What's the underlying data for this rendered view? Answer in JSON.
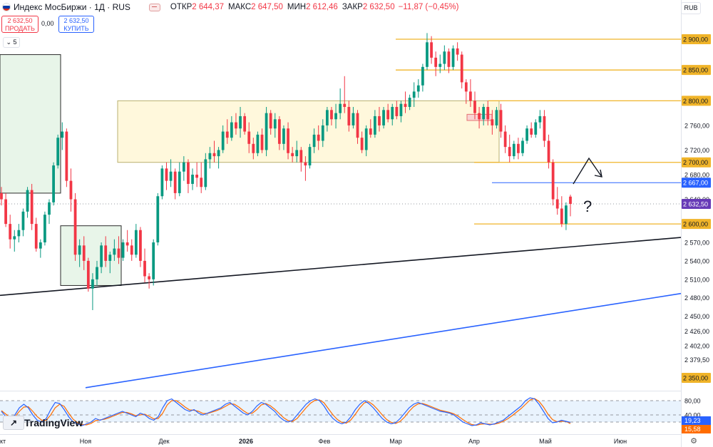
{
  "header": {
    "flag_colors": [
      "#ffffff",
      "#0039a6",
      "#d52b1e"
    ],
    "title": "Индекс МосБиржи · 1Д · RUS",
    "open_label": "ОТКР",
    "open_value": "2 644,37",
    "high_label": "МАКС",
    "high_value": "2 647,50",
    "low_label": "МИН",
    "low_value": "2 612,46",
    "close_label": "ЗАКР",
    "close_value": "2 632,50",
    "change_value": "−11,87 (−0,45%)",
    "currency": "RUB"
  },
  "trade": {
    "sell_price": "2 632,50",
    "sell_label": "ПРОДАТЬ",
    "spread": "0,00",
    "buy_price": "2 632,50",
    "buy_label": "КУПИТЬ",
    "indicators_count": "5"
  },
  "logo_text": "TradingView",
  "chart_data": {
    "type": "candlestick",
    "title": "Индекс МосБиржи · 1Д · RUS",
    "ylim": [
      2330,
      2920
    ],
    "y_ticks": [
      "2 900,00",
      "2 850,00",
      "2 800,00",
      "2 760,00",
      "2 720,00",
      "2 700,00",
      "2 680,00",
      "2 640,00",
      "2 600,00",
      "2 570,00",
      "2 540,00",
      "2 510,00",
      "2 480,00",
      "2 450,00",
      "2 426,00",
      "2 402,00",
      "2 379,50",
      "2 350,00"
    ],
    "y_tick_values": [
      2900,
      2850,
      2800,
      2760,
      2720,
      2700,
      2680,
      2640,
      2600,
      2570,
      2540,
      2510,
      2480,
      2450,
      2426,
      2402,
      2379.5,
      2350
    ],
    "x_labels": [
      {
        "label": "кт",
        "day": 0
      },
      {
        "label": "Ноя",
        "day": 24
      },
      {
        "label": "Дек",
        "day": 46
      },
      {
        "label": "2026",
        "day": 69
      },
      {
        "label": "Фев",
        "day": 91
      },
      {
        "label": "Мар",
        "day": 111
      },
      {
        "label": "Апр",
        "day": 133
      },
      {
        "label": "Май",
        "day": 153
      },
      {
        "label": "Июн",
        "day": 174
      }
    ],
    "days_total": 191,
    "highlighted_levels": [
      {
        "value": 2900,
        "label": "2 900,00",
        "color": "#f0b429"
      },
      {
        "value": 2850,
        "label": "2 850,00",
        "color": "#f0b429"
      },
      {
        "value": 2800,
        "label": "2 800,00",
        "color": "#f0b429"
      },
      {
        "value": 2700,
        "label": "2 700,00",
        "color": "#f0b429"
      },
      {
        "value": 2600,
        "label": "2 600,00",
        "color": "#f0b429"
      },
      {
        "value": 2350,
        "label": "2 350,00",
        "color": "#f0b429"
      },
      {
        "value": 2667,
        "label": "2 667,00",
        "color": "#2962ff"
      }
    ],
    "last_price": {
      "value": 2632.5,
      "label": "2 632,50",
      "color": "#673ab7"
    },
    "candles": [
      [
        2650,
        2660,
        2630,
        2640
      ],
      [
        2640,
        2650,
        2595,
        2600
      ],
      [
        2600,
        2615,
        2560,
        2575
      ],
      [
        2575,
        2590,
        2555,
        2580
      ],
      [
        2580,
        2600,
        2570,
        2590
      ],
      [
        2590,
        2625,
        2580,
        2620
      ],
      [
        2620,
        2660,
        2610,
        2655
      ],
      [
        2655,
        2665,
        2590,
        2600
      ],
      [
        2600,
        2610,
        2555,
        2560
      ],
      [
        2560,
        2575,
        2545,
        2570
      ],
      [
        2570,
        2620,
        2565,
        2615
      ],
      [
        2615,
        2640,
        2600,
        2635
      ],
      [
        2635,
        2700,
        2630,
        2695
      ],
      [
        2695,
        2745,
        2690,
        2740
      ],
      [
        2740,
        2765,
        2720,
        2750
      ],
      [
        2750,
        2755,
        2660,
        2670
      ],
      [
        2670,
        2690,
        2620,
        2640
      ],
      [
        2640,
        2650,
        2540,
        2550
      ],
      [
        2550,
        2575,
        2530,
        2565
      ],
      [
        2565,
        2580,
        2525,
        2540
      ],
      [
        2540,
        2545,
        2490,
        2495
      ],
      [
        2495,
        2520,
        2460,
        2510
      ],
      [
        2510,
        2540,
        2500,
        2530
      ],
      [
        2530,
        2570,
        2520,
        2565
      ],
      [
        2565,
        2580,
        2530,
        2540
      ],
      [
        2540,
        2555,
        2520,
        2550
      ],
      [
        2550,
        2575,
        2540,
        2560
      ],
      [
        2560,
        2580,
        2535,
        2545
      ],
      [
        2545,
        2575,
        2540,
        2570
      ],
      [
        2570,
        2590,
        2555,
        2565
      ],
      [
        2565,
        2575,
        2540,
        2550
      ],
      [
        2550,
        2600,
        2545,
        2590
      ],
      [
        2590,
        2595,
        2530,
        2540
      ],
      [
        2540,
        2560,
        2505,
        2515
      ],
      [
        2515,
        2520,
        2495,
        2510
      ],
      [
        2510,
        2575,
        2500,
        2570
      ],
      [
        2570,
        2650,
        2565,
        2645
      ],
      [
        2645,
        2695,
        2640,
        2690
      ],
      [
        2690,
        2700,
        2655,
        2670
      ],
      [
        2670,
        2705,
        2660,
        2685
      ],
      [
        2685,
        2690,
        2640,
        2650
      ],
      [
        2650,
        2700,
        2645,
        2685
      ],
      [
        2685,
        2710,
        2670,
        2700
      ],
      [
        2700,
        2705,
        2650,
        2665
      ],
      [
        2665,
        2690,
        2655,
        2680
      ],
      [
        2680,
        2700,
        2660,
        2675
      ],
      [
        2675,
        2700,
        2650,
        2660
      ],
      [
        2660,
        2715,
        2655,
        2705
      ],
      [
        2705,
        2725,
        2690,
        2715
      ],
      [
        2715,
        2735,
        2700,
        2710
      ],
      [
        2710,
        2725,
        2690,
        2720
      ],
      [
        2720,
        2760,
        2715,
        2750
      ],
      [
        2750,
        2770,
        2730,
        2740
      ],
      [
        2740,
        2775,
        2735,
        2765
      ],
      [
        2765,
        2780,
        2745,
        2755
      ],
      [
        2755,
        2790,
        2740,
        2775
      ],
      [
        2775,
        2780,
        2745,
        2750
      ],
      [
        2750,
        2765,
        2715,
        2730
      ],
      [
        2730,
        2740,
        2705,
        2715
      ],
      [
        2715,
        2750,
        2710,
        2745
      ],
      [
        2745,
        2755,
        2715,
        2720
      ],
      [
        2720,
        2790,
        2710,
        2780
      ],
      [
        2780,
        2785,
        2745,
        2755
      ],
      [
        2755,
        2780,
        2740,
        2770
      ],
      [
        2770,
        2775,
        2720,
        2730
      ],
      [
        2730,
        2760,
        2720,
        2755
      ],
      [
        2755,
        2765,
        2705,
        2715
      ],
      [
        2715,
        2725,
        2700,
        2710
      ],
      [
        2710,
        2735,
        2700,
        2720
      ],
      [
        2720,
        2725,
        2685,
        2700
      ],
      [
        2700,
        2710,
        2670,
        2695
      ],
      [
        2695,
        2730,
        2690,
        2725
      ],
      [
        2725,
        2755,
        2715,
        2745
      ],
      [
        2745,
        2760,
        2720,
        2735
      ],
      [
        2735,
        2770,
        2725,
        2760
      ],
      [
        2760,
        2790,
        2750,
        2785
      ],
      [
        2785,
        2790,
        2760,
        2770
      ],
      [
        2770,
        2795,
        2755,
        2780
      ],
      [
        2780,
        2820,
        2770,
        2795
      ],
      [
        2795,
        2840,
        2780,
        2790
      ],
      [
        2790,
        2800,
        2750,
        2760
      ],
      [
        2760,
        2790,
        2755,
        2780
      ],
      [
        2780,
        2785,
        2730,
        2740
      ],
      [
        2740,
        2750,
        2715,
        2720
      ],
      [
        2720,
        2760,
        2710,
        2755
      ],
      [
        2755,
        2770,
        2740,
        2745
      ],
      [
        2745,
        2785,
        2740,
        2775
      ],
      [
        2775,
        2790,
        2750,
        2760
      ],
      [
        2760,
        2790,
        2755,
        2785
      ],
      [
        2785,
        2795,
        2765,
        2770
      ],
      [
        2770,
        2795,
        2760,
        2790
      ],
      [
        2790,
        2800,
        2770,
        2775
      ],
      [
        2775,
        2800,
        2765,
        2795
      ],
      [
        2795,
        2815,
        2780,
        2790
      ],
      [
        2790,
        2810,
        2785,
        2805
      ],
      [
        2805,
        2830,
        2790,
        2815
      ],
      [
        2815,
        2835,
        2805,
        2825
      ],
      [
        2825,
        2860,
        2815,
        2855
      ],
      [
        2855,
        2910,
        2850,
        2895
      ],
      [
        2895,
        2905,
        2860,
        2870
      ],
      [
        2870,
        2880,
        2840,
        2855
      ],
      [
        2855,
        2875,
        2845,
        2860
      ],
      [
        2860,
        2890,
        2850,
        2880
      ],
      [
        2880,
        2885,
        2845,
        2855
      ],
      [
        2855,
        2890,
        2850,
        2885
      ],
      [
        2885,
        2895,
        2865,
        2875
      ],
      [
        2875,
        2880,
        2820,
        2830
      ],
      [
        2830,
        2835,
        2795,
        2815
      ],
      [
        2815,
        2835,
        2790,
        2800
      ],
      [
        2800,
        2815,
        2770,
        2780
      ],
      [
        2780,
        2790,
        2755,
        2770
      ],
      [
        2770,
        2795,
        2760,
        2790
      ],
      [
        2790,
        2800,
        2760,
        2770
      ],
      [
        2770,
        2785,
        2745,
        2760
      ],
      [
        2760,
        2790,
        2755,
        2785
      ],
      [
        2785,
        2795,
        2740,
        2750
      ],
      [
        2750,
        2760,
        2715,
        2725
      ],
      [
        2725,
        2745,
        2700,
        2710
      ],
      [
        2710,
        2735,
        2705,
        2730
      ],
      [
        2730,
        2740,
        2705,
        2715
      ],
      [
        2715,
        2740,
        2710,
        2735
      ],
      [
        2735,
        2760,
        2730,
        2755
      ],
      [
        2755,
        2765,
        2740,
        2745
      ],
      [
        2745,
        2770,
        2740,
        2765
      ],
      [
        2765,
        2785,
        2755,
        2775
      ],
      [
        2775,
        2785,
        2725,
        2735
      ],
      [
        2735,
        2745,
        2690,
        2700
      ],
      [
        2700,
        2705,
        2630,
        2640
      ],
      [
        2640,
        2660,
        2615,
        2625
      ],
      [
        2625,
        2645,
        2595,
        2600
      ],
      [
        2600,
        2635,
        2590,
        2630
      ],
      [
        2644.37,
        2647.5,
        2612.46,
        2632.5
      ]
    ],
    "overlay_boxes": [
      {
        "name": "green-zone-top",
        "day_start": 0,
        "day_end": 17,
        "y_top": 2875,
        "y_bottom": 2650,
        "color": "#e8f5e9",
        "border": "#2b2b2b"
      },
      {
        "name": "green-zone-bottom",
        "day_start": 17,
        "day_end": 34,
        "y_top": 2597,
        "y_bottom": 2500,
        "color": "#e8f5e9",
        "border": "#2b2b2b"
      },
      {
        "name": "yellow-range",
        "day_start": 33,
        "day_end": 140,
        "y_top": 2800,
        "y_bottom": 2700,
        "color": "#fff8dc",
        "border": "#b8b070"
      },
      {
        "name": "red-zone",
        "day_start": 131,
        "day_end": 138,
        "y_top": 2778,
        "y_bottom": 2768,
        "color": "#f9d3d3",
        "border": "#e57373"
      }
    ],
    "trendlines": [
      {
        "name": "black-support",
        "from": [
          0,
          2484
        ],
        "to": [
          191,
          2578
        ],
        "color": "#131722"
      },
      {
        "name": "blue-support",
        "from": [
          24,
          2334
        ],
        "to": [
          191,
          2487
        ],
        "color": "#2962ff"
      }
    ],
    "annotation": "?",
    "oscillator": {
      "type": "stochastic",
      "levels": [
        80,
        40
      ],
      "level_labels": [
        "80,00",
        "40,00"
      ],
      "k_label": "19,23",
      "d_label": "15,58",
      "k_color": "#2962ff",
      "d_color": "#ff6d00",
      "k": [
        50,
        35,
        25,
        40,
        60,
        70,
        60,
        40,
        25,
        20,
        30,
        55,
        75,
        72,
        55,
        35,
        20,
        15,
        10,
        15,
        20,
        30,
        25,
        30,
        35,
        40,
        45,
        50,
        45,
        40,
        35,
        45,
        40,
        30,
        25,
        35,
        60,
        80,
        85,
        75,
        65,
        55,
        50,
        55,
        45,
        40,
        45,
        50,
        55,
        60,
        70,
        75,
        65,
        55,
        45,
        40,
        50,
        65,
        75,
        70,
        60,
        50,
        35,
        25,
        20,
        25,
        40,
        55,
        70,
        80,
        85,
        80,
        65,
        45,
        30,
        20,
        15,
        20,
        35,
        55,
        70,
        80,
        72,
        60,
        45,
        30,
        20,
        15,
        18,
        30,
        45,
        60,
        70,
        75,
        70,
        65,
        60,
        55,
        50,
        48,
        45,
        40,
        30,
        20,
        15,
        10,
        12,
        18,
        15,
        12,
        15,
        20,
        25,
        35,
        45,
        55,
        65,
        80,
        88,
        85,
        70,
        50,
        30,
        18,
        20,
        25,
        22,
        19.23
      ],
      "d": [
        52,
        42,
        32,
        35,
        50,
        62,
        63,
        50,
        35,
        25,
        25,
        40,
        60,
        70,
        64,
        45,
        28,
        18,
        13,
        12,
        16,
        24,
        26,
        28,
        32,
        37,
        42,
        47,
        47,
        43,
        38,
        40,
        42,
        36,
        29,
        30,
        45,
        68,
        80,
        80,
        72,
        62,
        54,
        53,
        50,
        44,
        44,
        48,
        52,
        57,
        64,
        71,
        70,
        62,
        52,
        44,
        45,
        55,
        68,
        72,
        66,
        56,
        44,
        32,
        24,
        22,
        30,
        45,
        60,
        73,
        81,
        82,
        74,
        57,
        40,
        27,
        19,
        17,
        26,
        42,
        60,
        74,
        77,
        68,
        55,
        40,
        27,
        19,
        16,
        22,
        34,
        50,
        63,
        71,
        72,
        68,
        63,
        58,
        53,
        50,
        47,
        43,
        36,
        27,
        19,
        13,
        11,
        14,
        15,
        14,
        14,
        17,
        22,
        29,
        38,
        48,
        58,
        70,
        82,
        86,
        78,
        62,
        42,
        27,
        21,
        22,
        22,
        15.58
      ]
    }
  }
}
